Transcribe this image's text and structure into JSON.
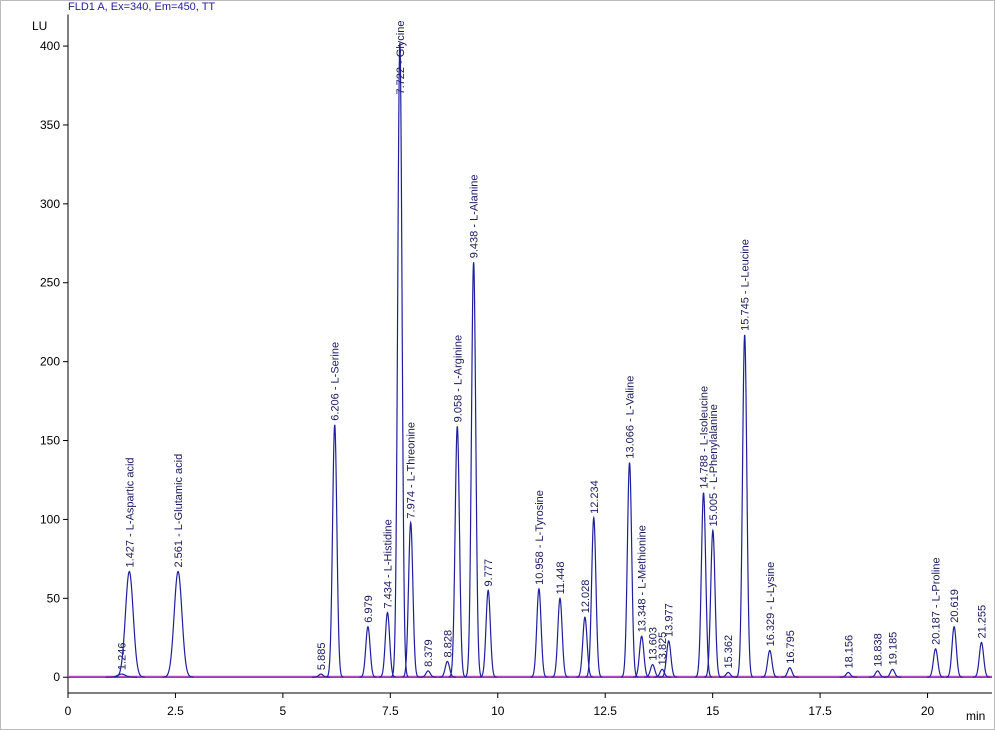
{
  "chart_data": {
    "type": "chromatogram",
    "title": "FLD1 A, Ex=340, Em=450, TT",
    "y_label": "LU",
    "x_label": "min",
    "xlim": [
      0,
      21.5
    ],
    "ylim": [
      -10,
      420
    ],
    "xticks": [
      0,
      2.5,
      5,
      7.5,
      10,
      12.5,
      15,
      17.5,
      20
    ],
    "yticks": [
      0,
      50,
      100,
      150,
      200,
      250,
      300,
      350,
      400
    ],
    "color": "#1f1f9e",
    "baseline_color": "#e040c0",
    "peaks": [
      {
        "label": "1.246",
        "rt": 1.246,
        "height": 2
      },
      {
        "label": "1.427 - L-Aspartic acid",
        "rt": 1.427,
        "height": 67
      },
      {
        "label": "2.561 - L-Glutamic acid",
        "rt": 2.561,
        "height": 67
      },
      {
        "label": "5.885",
        "rt": 5.885,
        "height": 2
      },
      {
        "label": "6.206 - L-Serine",
        "rt": 6.206,
        "height": 160
      },
      {
        "label": "6.979",
        "rt": 6.979,
        "height": 32
      },
      {
        "label": "7.434 - L-Histidine",
        "rt": 7.434,
        "height": 41
      },
      {
        "label": "7.722 - Glycine",
        "rt": 7.722,
        "height": 402
      },
      {
        "label": "7.974 - L-Threonine",
        "rt": 7.974,
        "height": 98
      },
      {
        "label": "8.379",
        "rt": 8.379,
        "height": 4
      },
      {
        "label": "8.828",
        "rt": 8.828,
        "height": 10
      },
      {
        "label": "9.058 - L-Arginine",
        "rt": 9.058,
        "height": 159
      },
      {
        "label": "9.438 - L-Alanine",
        "rt": 9.438,
        "height": 263
      },
      {
        "label": "9.777",
        "rt": 9.777,
        "height": 55
      },
      {
        "label": "10.958 - L-Tyrosine",
        "rt": 10.958,
        "height": 56
      },
      {
        "label": "11.448",
        "rt": 11.448,
        "height": 50
      },
      {
        "label": "12.028",
        "rt": 12.028,
        "height": 38
      },
      {
        "label": "12.234",
        "rt": 12.234,
        "height": 101
      },
      {
        "label": "13.066 - L-Valine",
        "rt": 13.066,
        "height": 136
      },
      {
        "label": "13.348 - L-Methionine",
        "rt": 13.348,
        "height": 26
      },
      {
        "label": "13.603",
        "rt": 13.603,
        "height": 8
      },
      {
        "label": "13.825",
        "rt": 13.825,
        "height": 5
      },
      {
        "label": "13.977",
        "rt": 13.977,
        "height": 23
      },
      {
        "label": "14.788 - L-Isoleucine",
        "rt": 14.788,
        "height": 117
      },
      {
        "label": "15.005 - L-Phenylalanine",
        "rt": 15.005,
        "height": 93
      },
      {
        "label": "15.362",
        "rt": 15.362,
        "height": 3
      },
      {
        "label": "15.745 - L-Leucine",
        "rt": 15.745,
        "height": 217
      },
      {
        "label": "16.329 - L-Lysine",
        "rt": 16.329,
        "height": 17
      },
      {
        "label": "16.795",
        "rt": 16.795,
        "height": 6
      },
      {
        "label": "18.156",
        "rt": 18.156,
        "height": 3
      },
      {
        "label": "18.838",
        "rt": 18.838,
        "height": 4
      },
      {
        "label": "19.185",
        "rt": 19.185,
        "height": 5
      },
      {
        "label": "20.187 - L-Proline",
        "rt": 20.187,
        "height": 18
      },
      {
        "label": "20.619",
        "rt": 20.619,
        "height": 32
      },
      {
        "label": "21.255",
        "rt": 21.255,
        "height": 22
      }
    ]
  }
}
